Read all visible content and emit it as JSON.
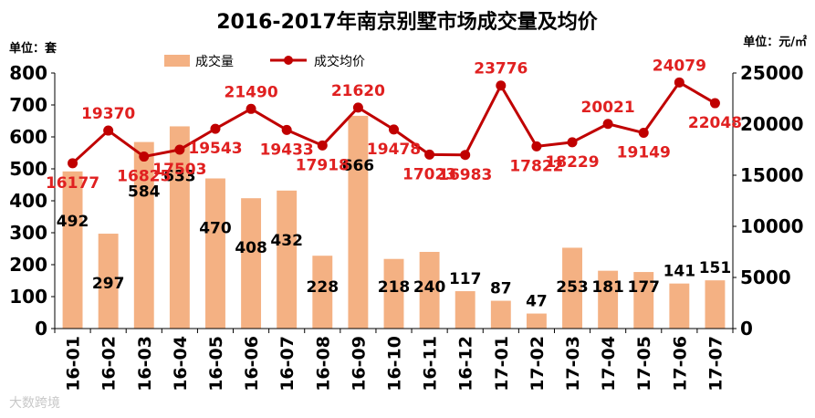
{
  "chart_data": {
    "type": "bar+line",
    "title": "2016-2017年南京别墅市场成交量及均价",
    "left_unit_label": "单位：套",
    "right_unit_label": "单位：元/㎡",
    "categories": [
      "16-01",
      "16-02",
      "16-03",
      "16-04",
      "16-05",
      "16-06",
      "16-07",
      "16-08",
      "16-09",
      "16-10",
      "16-11",
      "16-12",
      "17-01",
      "17-02",
      "17-03",
      "17-04",
      "17-05",
      "17-06",
      "17-07"
    ],
    "series": [
      {
        "name": "成交量",
        "type": "bar",
        "axis": "left",
        "color": "#F4B183",
        "values": [
          492,
          297,
          584,
          633,
          470,
          408,
          432,
          228,
          666,
          218,
          240,
          117,
          87,
          47,
          253,
          181,
          177,
          141,
          151
        ]
      },
      {
        "name": "成交均价",
        "type": "line",
        "axis": "right",
        "color": "#C00000",
        "values": [
          16177,
          19370,
          16825,
          17503,
          19543,
          21490,
          19433,
          17918,
          21620,
          19478,
          17023,
          16983,
          23776,
          17822,
          18229,
          20021,
          19149,
          24079,
          22048
        ]
      }
    ],
    "left_axis": {
      "min": 0,
      "max": 800,
      "step": 100
    },
    "right_axis": {
      "min": 0,
      "max": 25000,
      "step": 5000
    },
    "grid": false,
    "legend_position": "top",
    "watermark": "大数跨境",
    "label_color_bar": "#000000",
    "label_color_line": "#E02020"
  }
}
